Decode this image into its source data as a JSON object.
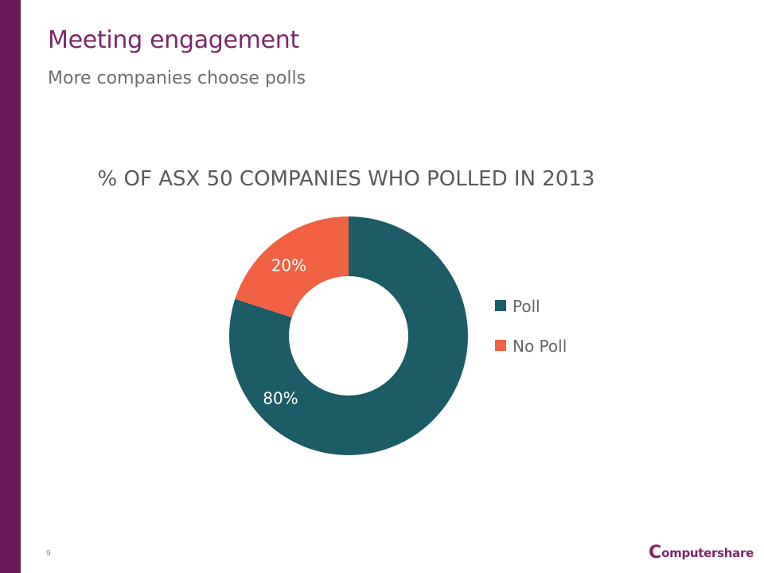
{
  "slide": {
    "title": "Meeting engagement",
    "subtitle": "More companies choose polls",
    "page_number": "9",
    "logo": {
      "mark": "C",
      "text": "omputershare"
    }
  },
  "colors": {
    "brand": "#7b2869",
    "sidebar": "#6b1a58",
    "poll": "#1b5c66",
    "no_poll": "#f06243"
  },
  "chart_data": {
    "type": "pie",
    "style": "donut",
    "title": "% OF ASX 50 COMPANIES WHO POLLED IN 2013",
    "categories": [
      "Poll",
      "No Poll"
    ],
    "values": [
      80,
      20
    ],
    "labels": [
      "80%",
      "20%"
    ],
    "colors": [
      "#1b5c66",
      "#f06243"
    ],
    "legend": "right"
  }
}
